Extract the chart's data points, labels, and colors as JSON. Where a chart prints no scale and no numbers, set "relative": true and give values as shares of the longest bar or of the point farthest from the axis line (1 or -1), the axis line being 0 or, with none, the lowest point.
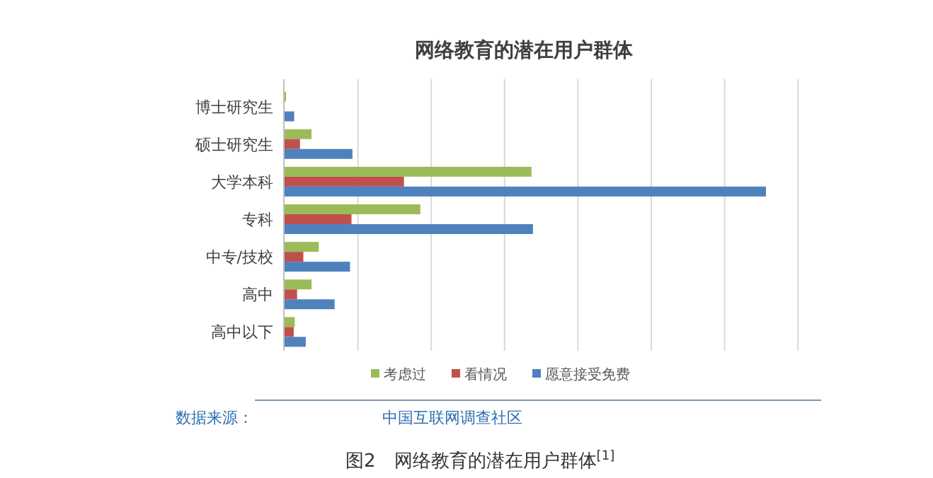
{
  "chart_data": {
    "type": "bar",
    "orientation": "horizontal",
    "relative": true,
    "title": "网络教育的潜在用户群体",
    "categories": [
      "博士研究生",
      "硕士研究生",
      "大学本科",
      "专科",
      "中专/技校",
      "高中",
      "高中以下"
    ],
    "series": [
      {
        "name": "考虑过",
        "color": "#9bbb59",
        "values": [
          0.003,
          0.056,
          0.513,
          0.282,
          0.071,
          0.056,
          0.021
        ]
      },
      {
        "name": "看情况",
        "color": "#c0504d",
        "values": [
          0,
          0.032,
          0.248,
          0.139,
          0.039,
          0.026,
          0.019
        ]
      },
      {
        "name": "愿意接受免费",
        "color": "#4f81bd",
        "values": [
          0.02,
          0.141,
          1,
          0.516,
          0.136,
          0.104,
          0.044
        ]
      }
    ],
    "grid": "x",
    "legend": "bottom",
    "annotations": [
      "数据来源：",
      "中国互联网调查社区",
      "图2　网络教育的潜在用户群体$^{[1]}$"
    ]
  }
}
